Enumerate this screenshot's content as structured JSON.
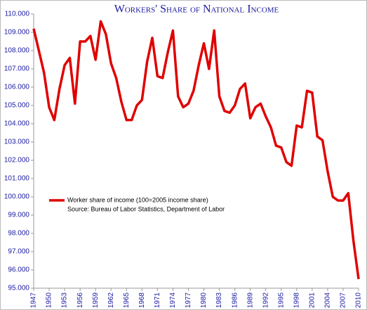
{
  "chart_data": {
    "type": "line",
    "title": "Workers' Share of National Income",
    "x": [
      1947,
      1948,
      1949,
      1950,
      1951,
      1952,
      1953,
      1954,
      1955,
      1956,
      1957,
      1958,
      1959,
      1960,
      1961,
      1962,
      1963,
      1964,
      1965,
      1966,
      1967,
      1968,
      1969,
      1970,
      1971,
      1972,
      1973,
      1974,
      1975,
      1976,
      1977,
      1978,
      1979,
      1980,
      1981,
      1982,
      1983,
      1984,
      1985,
      1986,
      1987,
      1988,
      1989,
      1990,
      1991,
      1992,
      1993,
      1994,
      1995,
      1996,
      1997,
      1998,
      1999,
      2000,
      2001,
      2002,
      2003,
      2004,
      2005,
      2006,
      2007,
      2008,
      2009,
      2010
    ],
    "series": [
      {
        "name": "Worker share of income (100=2005 income share)",
        "color": "#e00000",
        "values": [
          109.2,
          108.0,
          106.8,
          104.9,
          104.2,
          105.9,
          107.2,
          107.6,
          105.1,
          108.5,
          108.5,
          108.8,
          107.5,
          109.6,
          108.9,
          107.3,
          106.5,
          105.2,
          104.2,
          104.2,
          105.0,
          105.3,
          107.4,
          108.7,
          106.6,
          106.5,
          107.9,
          109.1,
          105.5,
          104.9,
          105.1,
          105.8,
          107.2,
          108.4,
          107.0,
          109.1,
          105.5,
          104.7,
          104.6,
          105.0,
          105.9,
          106.2,
          104.3,
          104.9,
          105.1,
          104.4,
          103.8,
          102.8,
          102.7,
          101.9,
          101.7,
          103.9,
          103.8,
          105.8,
          105.7,
          103.3,
          103.1,
          101.4,
          100.0,
          99.8,
          99.8,
          100.2,
          97.6,
          95.5
        ]
      }
    ],
    "annotation": "Source: Bureau of Labor Statistics, Department of Labor",
    "xlim": [
      1947,
      2010
    ],
    "xticks": [
      1947,
      1950,
      1953,
      1956,
      1959,
      1962,
      1965,
      1968,
      1971,
      1974,
      1977,
      1980,
      1983,
      1986,
      1989,
      1992,
      1995,
      1998,
      2001,
      2004,
      2007,
      2010
    ],
    "ylim": [
      95,
      110
    ],
    "yticks": [
      {
        "value": 95,
        "label": "95.000"
      },
      {
        "value": 96,
        "label": "96.000"
      },
      {
        "value": 97,
        "label": "97.000"
      },
      {
        "value": 98,
        "label": "98.000"
      },
      {
        "value": 99,
        "label": "99.000"
      },
      {
        "value": 100,
        "label": "100.000"
      },
      {
        "value": 101,
        "label": "101.000"
      },
      {
        "value": 102,
        "label": "102.000"
      },
      {
        "value": 103,
        "label": "103.000"
      },
      {
        "value": 104,
        "label": "104.000"
      },
      {
        "value": 105,
        "label": "105.000"
      },
      {
        "value": 106,
        "label": "106.000"
      },
      {
        "value": 107,
        "label": "107.000"
      },
      {
        "value": 108,
        "label": "108.000"
      },
      {
        "value": 109,
        "label": "109.000"
      },
      {
        "value": 110,
        "label": "110.000"
      }
    ],
    "grid": false
  }
}
